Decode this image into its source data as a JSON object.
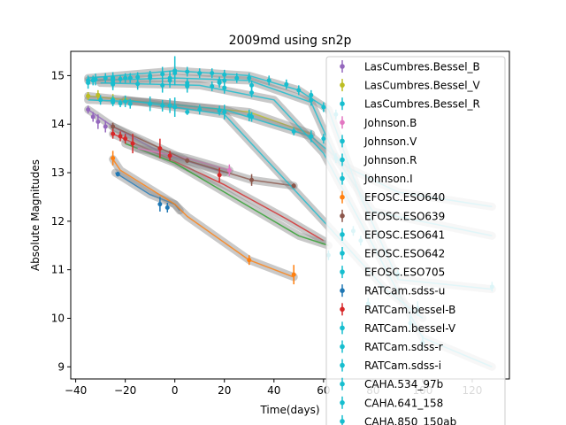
{
  "chart_data": {
    "type": "scatter",
    "title": "2009md using sn2p",
    "xlabel": "Time(days)",
    "ylabel": "Absolute Magnitudes",
    "xlim": [
      -42,
      135
    ],
    "ylim": [
      15.5,
      8.75
    ],
    "y_inverted": true,
    "x_ticks": [
      -40,
      -20,
      0,
      20,
      40,
      60,
      80,
      100,
      120
    ],
    "x_tick_labels": [
      "−40",
      "−20",
      "0",
      "20",
      "40",
      "60",
      "80",
      "100",
      "120"
    ],
    "y_ticks": [
      15,
      14,
      13,
      12,
      11,
      10,
      9
    ],
    "y_tick_labels": [
      "15",
      "14",
      "13",
      "12",
      "11",
      "10",
      "9"
    ],
    "grid": false,
    "legend_position": "right (overflowing the axes)",
    "series": [
      {
        "name": "LasCumbres.Bessel_B",
        "color": "#9467bd",
        "points": [
          [
            -35,
            14.3
          ],
          [
            -33,
            14.15
          ],
          [
            -31,
            14.05
          ],
          [
            -28,
            13.95
          ]
        ],
        "err": [
          0.08,
          0.1,
          0.15,
          0.12
        ]
      },
      {
        "name": "LasCumbres.Bessel_V",
        "color": "#bcbd22",
        "points": [
          [
            -35,
            14.58
          ],
          [
            -31,
            14.6
          ],
          [
            -25,
            14.52
          ],
          [
            -20,
            14.5
          ]
        ],
        "err": [
          0.08,
          0.1,
          0.1,
          0.08
        ]
      },
      {
        "name": "LasCumbres.Bessel_R",
        "color": "#17becf",
        "points": [
          [
            -35,
            14.9
          ],
          [
            -32,
            14.92
          ],
          [
            -28,
            14.95
          ],
          [
            -25,
            14.95
          ],
          [
            -20,
            14.95
          ],
          [
            -15,
            14.97
          ],
          [
            -10,
            15.0
          ],
          [
            -5,
            15.03
          ],
          [
            0,
            15.1
          ],
          [
            5,
            15.08
          ],
          [
            10,
            15.05
          ],
          [
            15,
            15.05
          ],
          [
            20,
            15.02
          ],
          [
            25,
            14.95
          ],
          [
            30,
            14.95
          ],
          [
            38,
            14.9
          ],
          [
            45,
            14.82
          ],
          [
            50,
            14.7
          ],
          [
            55,
            14.6
          ],
          [
            60,
            14.35
          ],
          [
            65,
            14.2
          ]
        ],
        "err": [
          0.1,
          0.12,
          0.1,
          0.12,
          0.1,
          0.1,
          0.1,
          0.15,
          0.3,
          0.1,
          0.1,
          0.1,
          0.1,
          0.1,
          0.1,
          0.1,
          0.1,
          0.1,
          0.1,
          0.1,
          0.1
        ]
      },
      {
        "name": "Johnson.B",
        "color": "#e377c2",
        "points": [
          [
            22,
            13.05
          ]
        ],
        "err": [
          0.12
        ]
      },
      {
        "name": "Johnson.V",
        "color": "#17becf",
        "points": [
          [
            -30,
            14.5
          ],
          [
            -20,
            14.47
          ],
          [
            -10,
            14.42
          ],
          [
            -5,
            14.38
          ],
          [
            0,
            14.35
          ],
          [
            10,
            14.3
          ],
          [
            20,
            14.25
          ],
          [
            30,
            14.18
          ],
          [
            55,
            13.75
          ]
        ],
        "err": [
          0.1,
          0.12,
          0.15,
          0.12,
          0.2,
          0.1,
          0.15,
          0.12,
          0.12
        ]
      },
      {
        "name": "Johnson.R",
        "color": "#17becf",
        "points": [
          [
            -35,
            14.85
          ],
          [
            -25,
            14.85
          ],
          [
            -15,
            14.83
          ],
          [
            -5,
            14.8
          ],
          [
            5,
            14.8
          ],
          [
            15,
            14.78
          ],
          [
            20,
            14.75
          ]
        ],
        "err": [
          0.12,
          0.15,
          0.12,
          0.15,
          0.15,
          0.1,
          0.12
        ]
      },
      {
        "name": "Johnson.I",
        "color": "#17becf",
        "points": [
          [
            -33,
            14.9
          ],
          [
            -10,
            14.95
          ],
          [
            0,
            15.05
          ],
          [
            20,
            14.9
          ],
          [
            55,
            14.5
          ]
        ],
        "err": [
          0.1,
          0.12,
          0.15,
          0.1,
          0.12
        ]
      },
      {
        "name": "EFOSC.ESO640",
        "color": "#ff7f0e",
        "points": [
          [
            -25,
            13.3
          ],
          [
            30,
            11.2
          ],
          [
            48,
            10.9
          ]
        ],
        "err": [
          0.15,
          0.1,
          0.2
        ]
      },
      {
        "name": "EFOSC.ESO639",
        "color": "#8c564b",
        "points": [
          [
            -25,
            13.95
          ],
          [
            5,
            13.25
          ],
          [
            31,
            12.85
          ],
          [
            48,
            12.73
          ]
        ],
        "err": [
          0.08,
          0.05,
          0.12,
          0.05
        ]
      },
      {
        "name": "EFOSC.ESO641",
        "color": "#17becf",
        "points": [
          [
            -25,
            14.5
          ],
          [
            5,
            14.25
          ],
          [
            31,
            14.15
          ],
          [
            48,
            13.85
          ]
        ],
        "err": [
          0.08,
          0.06,
          0.1,
          0.08
        ]
      },
      {
        "name": "EFOSC.ESO642",
        "color": "#17becf",
        "points": [
          [
            -25,
            14.82
          ],
          [
            5,
            14.78
          ],
          [
            31,
            14.65
          ],
          [
            60,
            13.7
          ]
        ],
        "err": [
          0.08,
          0.06,
          0.1,
          0.1
        ]
      },
      {
        "name": "EFOSC.ESO705",
        "color": "#17becf",
        "points": [
          [
            -25,
            14.9
          ],
          [
            5,
            14.85
          ],
          [
            31,
            14.8
          ],
          [
            65,
            13.3
          ]
        ],
        "err": [
          0.08,
          0.06,
          0.1,
          0.1
        ]
      },
      {
        "name": "RATCam.sdss-u",
        "color": "#1f77b4",
        "points": [
          [
            -23,
            12.97
          ],
          [
            -6,
            12.35
          ],
          [
            -3,
            12.28
          ]
        ],
        "err": [
          0.05,
          0.15,
          0.1
        ]
      },
      {
        "name": "RATCam.bessel-B",
        "color": "#d62728",
        "points": [
          [
            -25,
            13.8
          ],
          [
            -22,
            13.75
          ],
          [
            -20,
            13.7
          ],
          [
            -17,
            13.6
          ],
          [
            -6,
            13.5
          ],
          [
            -2,
            13.35
          ],
          [
            18,
            12.95
          ]
        ],
        "err": [
          0.1,
          0.1,
          0.1,
          0.2,
          0.2,
          0.1,
          0.15
        ]
      },
      {
        "name": "RATCam.bessel-V",
        "color": "#17becf",
        "points": [
          [
            -25,
            14.45
          ],
          [
            -22,
            14.43
          ],
          [
            -18,
            14.42
          ],
          [
            -2,
            14.38
          ],
          [
            18,
            14.28
          ]
        ],
        "err": [
          0.08,
          0.08,
          0.1,
          0.15,
          0.1
        ]
      },
      {
        "name": "RATCam.sdss-r",
        "color": "#17becf",
        "points": [
          [
            -25,
            14.95
          ],
          [
            -22,
            14.93
          ],
          [
            -18,
            14.95
          ],
          [
            -2,
            14.9
          ],
          [
            18,
            14.85
          ]
        ],
        "err": [
          0.08,
          0.08,
          0.1,
          0.15,
          0.1
        ]
      },
      {
        "name": "RATCam.sdss-i",
        "color": "#17becf",
        "points": [
          [
            -25,
            14.93
          ],
          [
            -18,
            14.95
          ],
          [
            -2,
            14.95
          ],
          [
            18,
            14.88
          ]
        ],
        "err": [
          0.08,
          0.1,
          0.15,
          0.1
        ]
      },
      {
        "name": "CAHA.534_97b",
        "color": "#17becf",
        "points": [
          [
            72,
            11.8
          ],
          [
            90,
            10.9
          ],
          [
            98,
            10.2
          ]
        ],
        "err": [
          0.1,
          0.1,
          0.15
        ]
      },
      {
        "name": "CAHA.641_158",
        "color": "#17becf",
        "points": [
          [
            75,
            11.6
          ],
          [
            95,
            9.9
          ],
          [
            100,
            9.5
          ]
        ],
        "err": [
          0.1,
          0.15,
          0.15
        ]
      },
      {
        "name": "CAHA.850_150ab",
        "color": "#17becf",
        "points": [
          [
            62,
            11.3
          ],
          [
            78,
            10.3
          ],
          [
            128,
            10.65
          ]
        ],
        "err": [
          0.1,
          0.12,
          0.1
        ]
      }
    ],
    "model_curves": [
      {
        "color": "#1f77b4",
        "points": [
          [
            -24,
            13.0
          ],
          [
            -10,
            12.55
          ],
          [
            0,
            12.35
          ],
          [
            2,
            12.22
          ]
        ]
      },
      {
        "color": "#ff7f0e",
        "points": [
          [
            -25,
            13.28
          ],
          [
            -22,
            13.05
          ],
          [
            0,
            12.35
          ],
          [
            5,
            12.1
          ],
          [
            30,
            11.2
          ],
          [
            48,
            10.85
          ]
        ]
      },
      {
        "color": "#d62728",
        "points": [
          [
            -25,
            13.8
          ],
          [
            -5,
            13.35
          ],
          [
            20,
            12.75
          ],
          [
            45,
            12.05
          ],
          [
            60,
            11.6
          ]
        ]
      },
      {
        "color": "#2ca02c",
        "points": [
          [
            -20,
            13.6
          ],
          [
            0,
            13.2
          ],
          [
            20,
            12.6
          ],
          [
            50,
            11.7
          ],
          [
            62,
            11.5
          ]
        ]
      },
      {
        "color": "#9467bd",
        "points": [
          [
            -35,
            14.3
          ],
          [
            -25,
            13.95
          ],
          [
            -5,
            13.4
          ],
          [
            20,
            13.0
          ]
        ]
      },
      {
        "color": "#e377c2",
        "points": [
          [
            -15,
            13.5
          ],
          [
            5,
            13.3
          ],
          [
            22,
            13.05
          ]
        ]
      },
      {
        "color": "#8c564b",
        "points": [
          [
            -25,
            13.95
          ],
          [
            5,
            13.25
          ],
          [
            31,
            12.85
          ],
          [
            48,
            12.73
          ]
        ]
      },
      {
        "color": "#bcbd22",
        "points": [
          [
            -35,
            14.58
          ],
          [
            -20,
            14.5
          ],
          [
            0,
            14.4
          ],
          [
            30,
            14.25
          ],
          [
            55,
            13.8
          ]
        ]
      },
      {
        "color": "#17becf",
        "points": [
          [
            -35,
            14.5
          ],
          [
            -10,
            14.45
          ],
          [
            20,
            14.3
          ],
          [
            55,
            13.75
          ],
          [
            70,
            13.1
          ],
          [
            90,
            12.6
          ],
          [
            128,
            12.3
          ]
        ]
      },
      {
        "color": "#17becf",
        "points": [
          [
            -35,
            14.9
          ],
          [
            0,
            14.95
          ],
          [
            30,
            14.9
          ],
          [
            55,
            14.45
          ],
          [
            65,
            13.3
          ],
          [
            80,
            12.2
          ],
          [
            128,
            11.7
          ]
        ]
      },
      {
        "color": "#17becf",
        "points": [
          [
            -35,
            14.95
          ],
          [
            0,
            15.1
          ],
          [
            30,
            15.0
          ],
          [
            50,
            14.7
          ],
          [
            62,
            14.3
          ],
          [
            75,
            12.5
          ],
          [
            90,
            10.8
          ],
          [
            128,
            10.6
          ]
        ]
      },
      {
        "color": "#17becf",
        "points": [
          [
            -30,
            14.85
          ],
          [
            10,
            14.8
          ],
          [
            40,
            14.5
          ],
          [
            60,
            13.4
          ],
          [
            80,
            11.5
          ],
          [
            100,
            9.6
          ],
          [
            128,
            9.0
          ]
        ]
      },
      {
        "color": "#17becf",
        "points": [
          [
            -20,
            14.5
          ],
          [
            20,
            14.2
          ],
          [
            60,
            12.0
          ],
          [
            85,
            10.6
          ],
          [
            100,
            10.0
          ]
        ]
      }
    ]
  }
}
